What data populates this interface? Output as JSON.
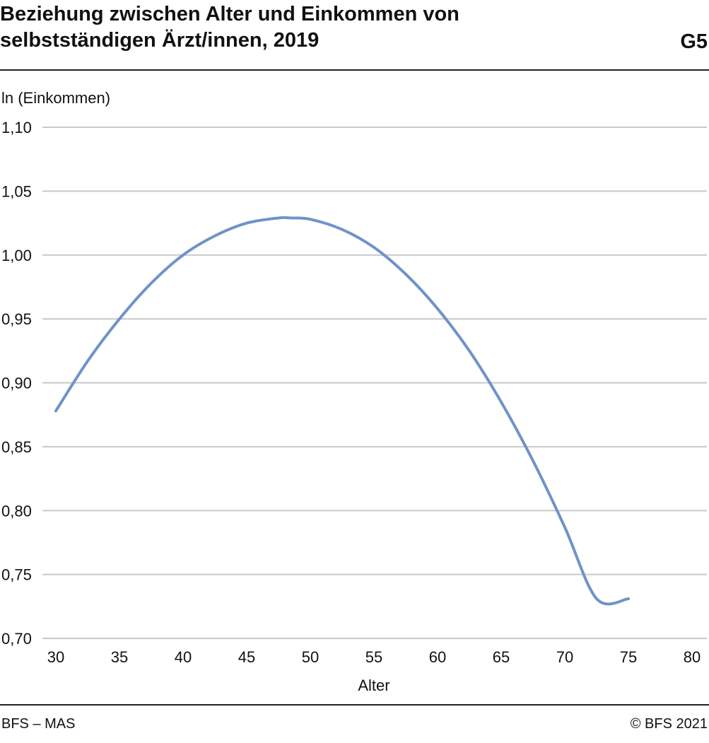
{
  "header": {
    "title_line1": "Beziehung zwischen Alter und Einkommen von",
    "title_line2": "selbstständigen Ärzt/innen, 2019",
    "chart_id": "G5"
  },
  "footer": {
    "source": "BFS – MAS",
    "copyright": "© BFS 2021"
  },
  "colors": {
    "line": "#6f93c8",
    "grid": "#c9c9c9",
    "rule": "#222222"
  },
  "chart_data": {
    "type": "line",
    "title": "Beziehung zwischen Alter und Einkommen von selbstständigen Ärzt/innen, 2019",
    "xlabel": "Alter",
    "ylabel": "ln (Einkommen)",
    "xlim": [
      30,
      80
    ],
    "ylim": [
      0.7,
      1.1
    ],
    "x_ticks": [
      30,
      35,
      40,
      45,
      50,
      55,
      60,
      65,
      70,
      75,
      80
    ],
    "x_tick_labels": [
      "30",
      "35",
      "40",
      "45",
      "50",
      "55",
      "60",
      "65",
      "70",
      "75",
      "80"
    ],
    "y_ticks": [
      0.7,
      0.75,
      0.8,
      0.85,
      0.9,
      0.95,
      1.0,
      1.05,
      1.1
    ],
    "y_tick_labels": [
      "0,70",
      "0,75",
      "0,80",
      "0,85",
      "0,90",
      "0,95",
      "1,00",
      "1,05",
      "1,10"
    ],
    "grid": "horizontal",
    "legend": "none",
    "series": [
      {
        "x": [
          30,
          32.5,
          35,
          37.5,
          40,
          42.5,
          45,
          47.5,
          48.5,
          50,
          52.5,
          55,
          57.5,
          60,
          62.5,
          65,
          67.5,
          70,
          72.5,
          75
        ],
        "values": [
          0.878,
          0.917,
          0.95,
          0.978,
          1.0,
          1.015,
          1.025,
          1.029,
          1.029,
          1.028,
          1.02,
          1.006,
          0.985,
          0.958,
          0.925,
          0.885,
          0.839,
          0.787,
          0.731,
          0.731
        ]
      }
    ]
  }
}
